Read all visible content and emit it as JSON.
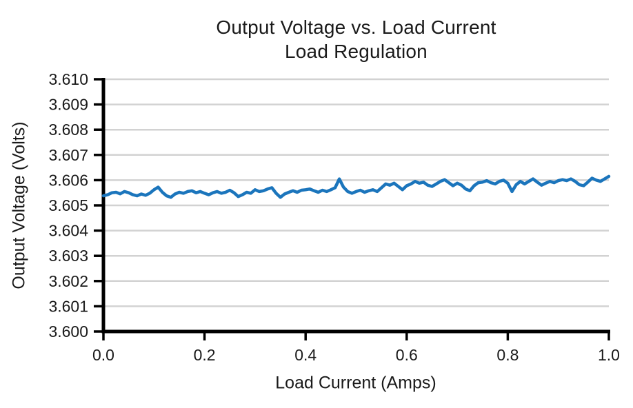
{
  "chart_data": {
    "type": "line",
    "title": "Output Voltage vs. Load Current",
    "subtitle": "Load Regulation",
    "xlabel": "Load Current (Amps)",
    "ylabel": "Output Voltage (Volts)",
    "xlim": [
      0.0,
      1.0
    ],
    "ylim": [
      3.6,
      3.61
    ],
    "xticks": [
      0.0,
      0.2,
      0.4,
      0.6,
      0.8,
      1.0
    ],
    "xtick_labels": [
      "0.0",
      "0.2",
      "0.4",
      "0.6",
      "0.8",
      "1.0"
    ],
    "yticks": [
      3.6,
      3.601,
      3.602,
      3.603,
      3.604,
      3.605,
      3.606,
      3.607,
      3.608,
      3.609,
      3.61
    ],
    "ytick_labels": [
      "3.600",
      "3.601",
      "3.602",
      "3.603",
      "3.604",
      "3.605",
      "3.606",
      "3.607",
      "3.608",
      "3.609",
      "3.610"
    ],
    "grid": "horizontal",
    "legend": "none",
    "line_color": "#1b75bc",
    "grid_color": "#d2d2d2",
    "axis_color": "#000000",
    "x_start": 0.0,
    "x_end": 1.0,
    "series": [
      {
        "name": "Output Voltage",
        "values": [
          3.60538,
          3.60542,
          3.6055,
          3.60552,
          3.60546,
          3.60555,
          3.6055,
          3.60542,
          3.60538,
          3.60545,
          3.6054,
          3.60548,
          3.60562,
          3.60572,
          3.60552,
          3.60538,
          3.60532,
          3.60545,
          3.60552,
          3.60548,
          3.60555,
          3.60558,
          3.6055,
          3.60555,
          3.60548,
          3.60542,
          3.6055,
          3.60555,
          3.60548,
          3.60552,
          3.6056,
          3.6055,
          3.60535,
          3.60542,
          3.60552,
          3.60548,
          3.60562,
          3.60555,
          3.60558,
          3.60565,
          3.6057,
          3.60548,
          3.60532,
          3.60545,
          3.60552,
          3.60558,
          3.60552,
          3.6056,
          3.60562,
          3.60565,
          3.60558,
          3.60552,
          3.6056,
          3.60555,
          3.60562,
          3.6057,
          3.60605,
          3.60572,
          3.60555,
          3.60548,
          3.60555,
          3.6056,
          3.60552,
          3.60558,
          3.60562,
          3.60555,
          3.6057,
          3.60585,
          3.6058,
          3.60588,
          3.60575,
          3.60562,
          3.60578,
          3.60585,
          3.60595,
          3.60588,
          3.60592,
          3.6058,
          3.60575,
          3.60585,
          3.60595,
          3.60602,
          3.6059,
          3.60578,
          3.60588,
          3.6058,
          3.60565,
          3.60558,
          3.60578,
          3.6059,
          3.60592,
          3.60598,
          3.6059,
          3.60585,
          3.60595,
          3.606,
          3.60588,
          3.60555,
          3.60582,
          3.60595,
          3.60585,
          3.60595,
          3.60605,
          3.60592,
          3.6058,
          3.60588,
          3.60595,
          3.6059,
          3.60598,
          3.60602,
          3.60598,
          3.60605,
          3.60595,
          3.60582,
          3.60578,
          3.60592,
          3.60608,
          3.606,
          3.60595,
          3.60605,
          3.60615
        ]
      }
    ]
  }
}
